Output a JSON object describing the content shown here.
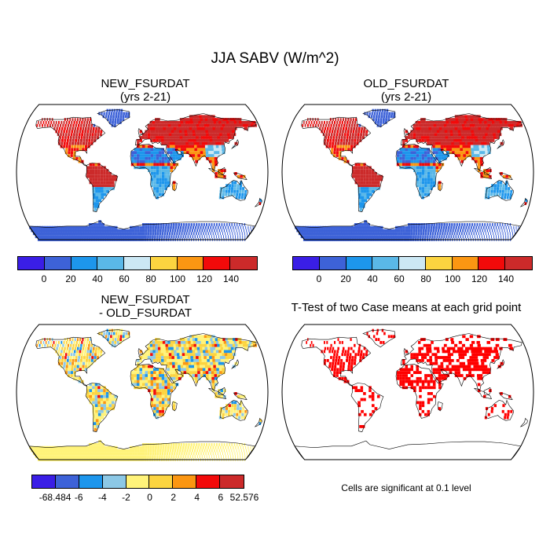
{
  "title": "JJA SABV (W/m^2)",
  "panels": [
    {
      "title_line1": "NEW_FSURDAT",
      "title_line2": "(yrs 2-21)"
    },
    {
      "title_line1": "OLD_FSURDAT",
      "title_line2": "(yrs 2-21)"
    },
    {
      "title_line1": "NEW_FSURDAT",
      "title_line2": "- OLD_FSURDAT"
    },
    {
      "title_line1": "T-Test of two Case means at each grid point",
      "title_line2": ""
    }
  ],
  "colorbar_abs": {
    "colors": [
      "#3a1ee6",
      "#3d62d8",
      "#1d96ec",
      "#5ab8e8",
      "#cce8f4",
      "#fcd440",
      "#fb9612",
      "#f20a0a",
      "#cc2a2a"
    ],
    "labels": [
      "0",
      "20",
      "40",
      "60",
      "80",
      "100",
      "120",
      "140"
    ]
  },
  "colorbar_diff": {
    "colors": [
      "#3a1ee6",
      "#3d62d8",
      "#1d96ec",
      "#8cc8e6",
      "#fff37a",
      "#fcd440",
      "#fb9612",
      "#f20a0a",
      "#cc2a2a"
    ],
    "labels": [
      "-68.484",
      "-6",
      "-4",
      "-2",
      "0",
      "2",
      "4",
      "6",
      "52.576"
    ]
  },
  "significance_note": "Cells are significant at 0.1 level"
}
